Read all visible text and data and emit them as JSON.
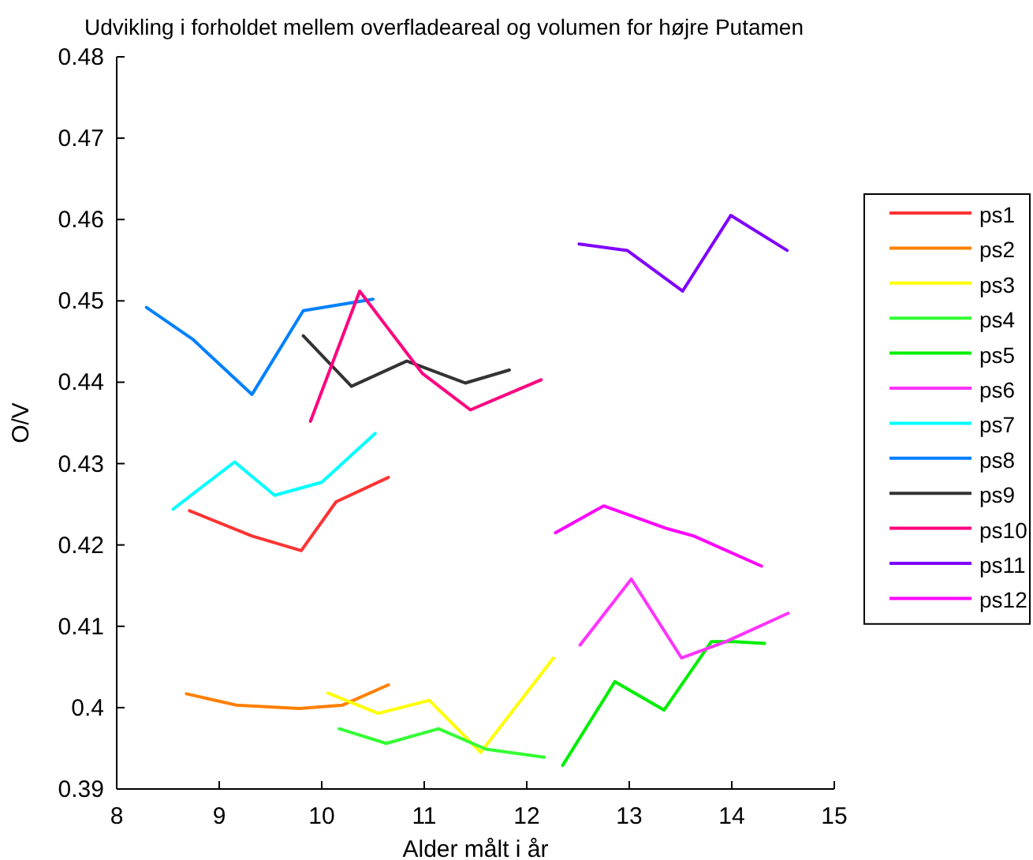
{
  "chart_data": {
    "type": "line",
    "title": "Udvikling i forholdet mellem overfladeareal og volumen for højre Putamen",
    "xlabel": "Alder målt i år",
    "ylabel": "O/V",
    "xlim": [
      8,
      15
    ],
    "xticks": [
      8,
      9,
      10,
      11,
      12,
      13,
      14,
      15
    ],
    "ylim": [
      0.39,
      0.48
    ],
    "yticks": [
      0.39,
      0.4,
      0.41,
      0.42,
      0.43,
      0.44,
      0.45,
      0.46,
      0.47,
      0.48
    ],
    "grid": false,
    "legend": "right",
    "marker": "none",
    "line_style": "solid",
    "series": [
      {
        "name": "ps1",
        "color": "#ff3333",
        "x": [
          8.71,
          9.32,
          9.8,
          10.14,
          10.65
        ],
        "values": [
          0.4242,
          0.4211,
          0.4193,
          0.4253,
          0.4283
        ]
      },
      {
        "name": "ps2",
        "color": "#ff8000",
        "x": [
          8.68,
          9.17,
          9.78,
          10.2,
          10.65
        ],
        "values": [
          0.4017,
          0.4003,
          0.3999,
          0.4003,
          0.4028
        ]
      },
      {
        "name": "ps3",
        "color": "#ffff00",
        "x": [
          10.06,
          10.55,
          11.05,
          11.55,
          12.26
        ],
        "values": [
          0.4018,
          0.3993,
          0.4009,
          0.3945,
          0.4061
        ]
      },
      {
        "name": "ps4",
        "color": "#33ff33",
        "x": [
          10.17,
          10.63,
          11.14,
          11.6,
          12.17
        ],
        "values": [
          0.3974,
          0.3956,
          0.3974,
          0.3949,
          0.3939
        ]
      },
      {
        "name": "ps5",
        "color": "#00ee00",
        "x": [
          12.35,
          12.86,
          13.34,
          13.8,
          14.02,
          14.32
        ],
        "values": [
          0.3929,
          0.4032,
          0.3997,
          0.4081,
          0.4081,
          0.4079
        ]
      },
      {
        "name": "ps6",
        "color": "#ff33ff",
        "x": [
          12.52,
          13.02,
          13.51,
          13.94,
          14.55
        ],
        "values": [
          0.4077,
          0.4158,
          0.4061,
          0.4081,
          0.4116
        ]
      },
      {
        "name": "ps7",
        "color": "#00ffff",
        "x": [
          8.55,
          9.15,
          9.54,
          10.0,
          10.52
        ],
        "values": [
          0.4244,
          0.4302,
          0.4261,
          0.4277,
          0.4337
        ]
      },
      {
        "name": "ps8",
        "color": "#0080ff",
        "x": [
          8.29,
          8.74,
          9.32,
          9.82,
          10.5
        ],
        "values": [
          0.4492,
          0.4453,
          0.4385,
          0.4488,
          0.4502
        ]
      },
      {
        "name": "ps9",
        "color": "#333333",
        "x": [
          9.82,
          10.29,
          10.83,
          11.4,
          11.83
        ],
        "values": [
          0.4457,
          0.4395,
          0.4426,
          0.4399,
          0.4415
        ]
      },
      {
        "name": "ps10",
        "color": "#ff0080",
        "x": [
          9.89,
          10.37,
          10.98,
          11.45,
          12.14
        ],
        "values": [
          0.4352,
          0.4512,
          0.4411,
          0.4366,
          0.4403
        ]
      },
      {
        "name": "ps11",
        "color": "#8000ff",
        "x": [
          12.51,
          12.98,
          13.52,
          13.99,
          14.54
        ],
        "values": [
          0.457,
          0.4562,
          0.4512,
          0.4605,
          0.4562
        ]
      },
      {
        "name": "ps12",
        "color": "#ff00ff",
        "x": [
          12.28,
          12.75,
          13.37,
          13.63,
          14.29
        ],
        "values": [
          0.4215,
          0.4248,
          0.422,
          0.4211,
          0.4174
        ]
      }
    ]
  }
}
